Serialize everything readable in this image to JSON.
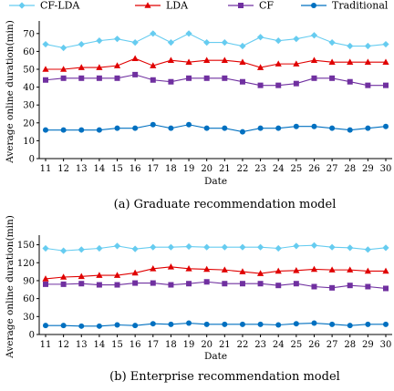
{
  "legend": [
    {
      "name": "CF-LDA",
      "color": "#66ccf0",
      "marker": "diamond"
    },
    {
      "name": "LDA",
      "color": "#e00000",
      "marker": "triangle"
    },
    {
      "name": "CF",
      "color": "#7030a0",
      "marker": "square"
    },
    {
      "name": "Traditional",
      "color": "#0070c0",
      "marker": "circle"
    }
  ],
  "chart_data": [
    {
      "type": "line",
      "caption": "(a) Graduate recommendation model",
      "xlabel": "Date",
      "ylabel": "Average online duration(min)",
      "x": [
        11,
        12,
        13,
        14,
        15,
        16,
        17,
        18,
        19,
        20,
        21,
        22,
        23,
        24,
        25,
        26,
        27,
        28,
        29,
        30
      ],
      "ylim": [
        0,
        75
      ],
      "yticks": [
        0,
        10,
        20,
        30,
        40,
        50,
        60,
        70
      ],
      "series": [
        {
          "name": "CF-LDA",
          "values": [
            64,
            62,
            64,
            66,
            67,
            65,
            70,
            65,
            70,
            65,
            65,
            63,
            68,
            66,
            67,
            69,
            65,
            63,
            63,
            64
          ]
        },
        {
          "name": "LDA",
          "values": [
            50,
            50,
            51,
            51,
            52,
            56,
            52,
            55,
            54,
            55,
            55,
            54,
            51,
            53,
            53,
            55,
            54,
            54,
            54,
            54
          ]
        },
        {
          "name": "CF",
          "values": [
            44,
            45,
            45,
            45,
            45,
            47,
            44,
            43,
            45,
            45,
            45,
            43,
            41,
            41,
            42,
            45,
            45,
            43,
            41,
            41
          ]
        },
        {
          "name": "Traditional",
          "values": [
            16,
            16,
            16,
            16,
            17,
            17,
            19,
            17,
            19,
            17,
            17,
            15,
            17,
            17,
            18,
            18,
            17,
            16,
            17,
            18
          ]
        }
      ]
    },
    {
      "type": "line",
      "caption": "(b) Enterprise recommendation model",
      "xlabel": "Date",
      "ylabel": "Average online duration(min)",
      "x": [
        11,
        12,
        13,
        14,
        15,
        16,
        17,
        18,
        19,
        20,
        21,
        22,
        23,
        24,
        25,
        26,
        27,
        28,
        29,
        30
      ],
      "ylim": [
        0,
        160
      ],
      "yticks": [
        0,
        30,
        60,
        90,
        120,
        150
      ],
      "series": [
        {
          "name": "CF-LDA",
          "values": [
            144,
            140,
            142,
            144,
            148,
            143,
            146,
            146,
            147,
            146,
            146,
            146,
            146,
            144,
            148,
            149,
            146,
            145,
            142,
            145
          ]
        },
        {
          "name": "LDA",
          "values": [
            93,
            96,
            97,
            99,
            99,
            103,
            110,
            113,
            110,
            109,
            108,
            105,
            102,
            106,
            107,
            109,
            108,
            108,
            106,
            106
          ]
        },
        {
          "name": "CF",
          "values": [
            84,
            84,
            85,
            83,
            83,
            86,
            86,
            83,
            85,
            88,
            85,
            85,
            85,
            82,
            85,
            80,
            78,
            82,
            80,
            77
          ]
        },
        {
          "name": "Traditional",
          "values": [
            15,
            15,
            14,
            14,
            16,
            15,
            18,
            17,
            19,
            17,
            17,
            17,
            17,
            16,
            18,
            19,
            17,
            15,
            17,
            17
          ]
        }
      ]
    }
  ]
}
